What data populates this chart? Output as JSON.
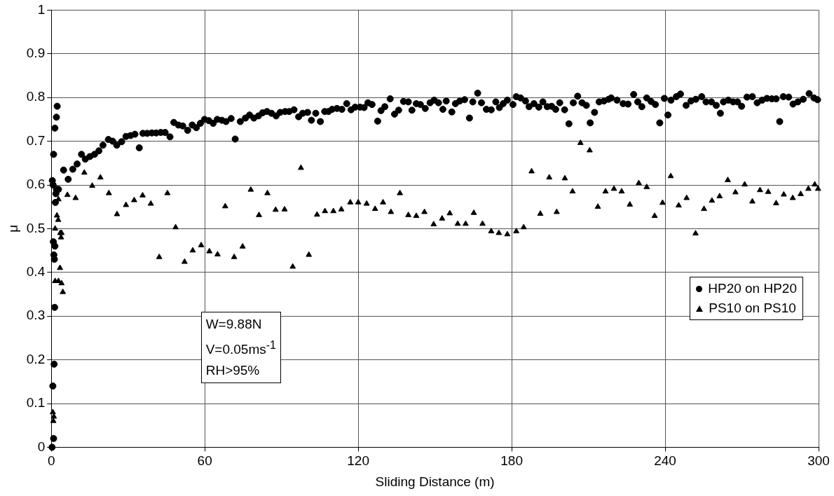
{
  "chart_data": {
    "type": "scatter",
    "xlabel": "Sliding Distance (m)",
    "ylabel": "μ",
    "xlim": [
      0,
      300
    ],
    "xticks": [
      0,
      60,
      120,
      180,
      240,
      300
    ],
    "ylim": [
      0,
      1
    ],
    "yticks": [
      0,
      0.1,
      0.2,
      0.3,
      0.4,
      0.5,
      0.6,
      0.7,
      0.8,
      0.9,
      1
    ],
    "grid": true,
    "legend": "right",
    "annotations": [
      "W=9.88N",
      "V=0.05ms$^{-1}$",
      "RH>95%"
    ],
    "series": [
      {
        "name": "HP20 on HP20",
        "color": "#000000",
        "marker": "circle",
        "x": [
          0.3,
          0.9,
          0.6,
          1.1,
          1.3,
          1.2,
          1.0,
          1.4,
          0.8,
          1.6,
          1.8,
          2.0,
          0.4,
          0.7,
          0.9,
          1.4,
          2.0,
          2.3,
          2.8,
          4.8,
          6.6,
          8.4,
          10.1,
          11.8,
          13.3,
          15.1,
          16.9,
          18.6,
          20.2,
          22.3,
          24.0,
          25.6,
          27.5,
          29.2,
          31.0,
          32.7,
          34.4,
          35.8,
          37.5,
          39.3,
          41.0,
          42.8,
          44.5,
          46.4,
          47.9,
          49.7,
          51.4,
          53.3,
          55.1,
          56.7,
          58.3,
          59.9,
          61.6,
          63.3,
          64.9,
          66.7,
          68.3,
          70.3,
          71.9,
          73.9,
          75.9,
          77.5,
          79.2,
          81.0,
          82.6,
          84.3,
          86.1,
          87.9,
          89.5,
          91.4,
          93.0,
          94.9,
          96.7,
          98.3,
          100.2,
          101.7,
          103.4,
          105.2,
          106.9,
          108.4,
          109.8,
          111.7,
          113.6,
          115.5,
          117.2,
          118.8,
          120.7,
          122.3,
          123.8,
          125.4,
          127.6,
          128.9,
          130.4,
          132.5,
          134.2,
          135.8,
          137.7,
          139.6,
          141.0,
          142.7,
          144.3,
          146.2,
          148.1,
          149.7,
          151.4,
          153.1,
          154.4,
          156.6,
          158.0,
          159.7,
          161.6,
          163.5,
          164.8,
          166.7,
          168.2,
          170.1,
          172.0,
          173.8,
          175.2,
          176.7,
          178.3,
          180.5,
          181.8,
          183.5,
          185.4,
          186.8,
          188.7,
          190.6,
          192.2,
          193.9,
          195.6,
          197.2,
          198.8,
          200.7,
          202.4,
          204.1,
          205.8,
          207.5,
          209.2,
          210.7,
          212.4,
          214.2,
          216.1,
          217.9,
          218.9,
          221.2,
          223.6,
          225.5,
          227.7,
          229.3,
          230.9,
          232.8,
          234.5,
          236.2,
          237.9,
          239.7,
          241.1,
          242.3,
          244.4,
          246.0,
          248.2,
          250.1,
          252.0,
          254.3,
          256.0,
          258.1,
          260.0,
          261.6,
          262.8,
          264.7,
          266.6,
          268.3,
          269.9,
          272.0,
          274.1,
          276.0,
          277.9,
          279.8,
          281.7,
          283.4,
          284.8,
          286.2,
          288.3,
          290.0,
          291.9,
          294.0,
          296.3,
          298.2,
          299.6
        ],
        "values": [
          0.0,
          0.02,
          0.14,
          0.19,
          0.32,
          0.43,
          0.44,
          0.46,
          0.47,
          0.56,
          0.58,
          0.59,
          0.61,
          0.6,
          0.67,
          0.73,
          0.755,
          0.78,
          0.59,
          0.634,
          0.613,
          0.636,
          0.648,
          0.67,
          0.659,
          0.665,
          0.67,
          0.678,
          0.691,
          0.704,
          0.7,
          0.691,
          0.699,
          0.711,
          0.713,
          0.716,
          0.685,
          0.718,
          0.718,
          0.719,
          0.719,
          0.72,
          0.72,
          0.71,
          0.743,
          0.737,
          0.735,
          0.725,
          0.737,
          0.731,
          0.741,
          0.75,
          0.747,
          0.741,
          0.75,
          0.748,
          0.745,
          0.752,
          0.705,
          0.745,
          0.753,
          0.76,
          0.753,
          0.758,
          0.765,
          0.768,
          0.764,
          0.758,
          0.766,
          0.768,
          0.768,
          0.772,
          0.756,
          0.764,
          0.766,
          0.748,
          0.764,
          0.745,
          0.768,
          0.768,
          0.773,
          0.775,
          0.773,
          0.786,
          0.772,
          0.778,
          0.778,
          0.777,
          0.788,
          0.784,
          0.746,
          0.77,
          0.779,
          0.797,
          0.762,
          0.771,
          0.791,
          0.79,
          0.771,
          0.786,
          0.784,
          0.775,
          0.788,
          0.794,
          0.788,
          0.773,
          0.792,
          0.767,
          0.786,
          0.792,
          0.795,
          0.753,
          0.79,
          0.81,
          0.788,
          0.773,
          0.772,
          0.79,
          0.777,
          0.786,
          0.794,
          0.784,
          0.802,
          0.799,
          0.792,
          0.779,
          0.786,
          0.778,
          0.79,
          0.779,
          0.78,
          0.773,
          0.788,
          0.772,
          0.74,
          0.788,
          0.803,
          0.788,
          0.782,
          0.742,
          0.766,
          0.79,
          0.792,
          0.796,
          0.799,
          0.794,
          0.786,
          0.785,
          0.807,
          0.79,
          0.779,
          0.799,
          0.791,
          0.784,
          0.742,
          0.798,
          0.76,
          0.794,
          0.802,
          0.808,
          0.782,
          0.792,
          0.796,
          0.802,
          0.79,
          0.79,
          0.782,
          0.764,
          0.79,
          0.794,
          0.79,
          0.79,
          0.78,
          0.801,
          0.802,
          0.788,
          0.794,
          0.798,
          0.797,
          0.797,
          0.745,
          0.802,
          0.801,
          0.785,
          0.79,
          0.796,
          0.809,
          0.799,
          0.795
        ]
      },
      {
        "name": "PS10 on PS10",
        "color": "#000000",
        "marker": "triangle",
        "x": [
          0.6,
          0.8,
          1.0,
          1.5,
          2.8,
          4.0,
          4.5,
          3.4,
          1.5,
          2.7,
          2.2,
          3.5,
          3.8,
          4.0,
          2.8,
          6.3,
          9.5,
          12.9,
          16.0,
          19.2,
          22.5,
          25.7,
          29.2,
          32.4,
          35.7,
          38.9,
          42.2,
          45.4,
          48.6,
          52.1,
          55.3,
          58.6,
          61.8,
          65.0,
          68.0,
          71.5,
          74.8,
          78.0,
          81.2,
          84.5,
          87.7,
          91.2,
          94.4,
          97.6,
          100.7,
          103.9,
          107.0,
          110.3,
          113.4,
          116.9,
          120.0,
          123.3,
          126.6,
          129.7,
          132.8,
          136.3,
          139.6,
          142.7,
          145.9,
          149.5,
          152.8,
          155.8,
          158.9,
          162.0,
          165.2,
          168.6,
          172.0,
          175.0,
          178.3,
          181.8,
          184.7,
          187.8,
          191.2,
          194.7,
          197.6,
          200.8,
          203.8,
          206.9,
          210.5,
          213.7,
          216.7,
          220.0,
          223.0,
          226.2,
          229.7,
          232.8,
          235.9,
          239.0,
          242.2,
          245.3,
          248.4,
          251.9,
          255.2,
          258.3,
          261.3,
          264.5,
          267.5,
          271.1,
          274.1,
          277.1,
          280.3,
          283.4,
          286.4,
          289.9,
          293.0,
          296.0,
          298.5,
          299.8
        ],
        "values": [
          0.08,
          0.06,
          0.07,
          0.38,
          0.38,
          0.375,
          0.355,
          0.41,
          0.5,
          0.52,
          0.53,
          0.49,
          0.48,
          0.49,
          0.567,
          0.577,
          0.57,
          0.628,
          0.598,
          0.617,
          0.581,
          0.533,
          0.554,
          0.565,
          0.576,
          0.557,
          0.435,
          0.581,
          0.503,
          0.424,
          0.45,
          0.462,
          0.448,
          0.441,
          0.551,
          0.435,
          0.459,
          0.589,
          0.531,
          0.581,
          0.543,
          0.544,
          0.413,
          0.639,
          0.44,
          0.532,
          0.54,
          0.54,
          0.544,
          0.56,
          0.56,
          0.557,
          0.545,
          0.56,
          0.538,
          0.581,
          0.531,
          0.529,
          0.538,
          0.51,
          0.523,
          0.535,
          0.511,
          0.511,
          0.536,
          0.511,
          0.494,
          0.49,
          0.487,
          0.494,
          0.503,
          0.631,
          0.534,
          0.617,
          0.538,
          0.615,
          0.585,
          0.696,
          0.679,
          0.55,
          0.585,
          0.591,
          0.585,
          0.555,
          0.604,
          0.595,
          0.529,
          0.559,
          0.62,
          0.553,
          0.57,
          0.489,
          0.545,
          0.564,
          0.574,
          0.611,
          0.583,
          0.601,
          0.562,
          0.588,
          0.584,
          0.558,
          0.578,
          0.57,
          0.579,
          0.591,
          0.601,
          0.591
        ]
      }
    ]
  }
}
